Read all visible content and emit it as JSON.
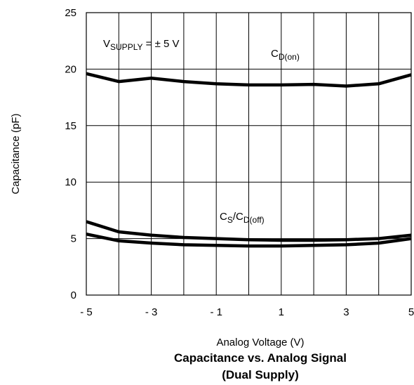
{
  "chart_data": {
    "type": "line",
    "title": "Capacitance vs. Analog Signal",
    "subtitle": "(Dual Supply)",
    "xlabel": "Analog Voltage (V)",
    "ylabel": "Capacitance (pF)",
    "xlim": [
      -5,
      5
    ],
    "ylim": [
      0,
      25
    ],
    "xticks": [
      -5,
      -4,
      -3,
      -2,
      -1,
      0,
      1,
      2,
      3,
      4,
      5
    ],
    "xtick_labels": [
      "- 5",
      "",
      "- 3",
      "",
      "- 1",
      "",
      "1",
      "",
      "3",
      "",
      "5"
    ],
    "yticks": [
      0,
      5,
      10,
      15,
      20,
      25
    ],
    "ytick_labels": [
      "0",
      "5",
      "10",
      "15",
      "20",
      "25"
    ],
    "grid": true,
    "annotations": {
      "supply": {
        "main": "V",
        "sub": "SUPPLY",
        "tail": " = ± 5 V"
      },
      "cdon": {
        "main": "C",
        "sub": "D(on)"
      },
      "cscdoff": {
        "main1": "C",
        "sub1": "S",
        "mid": "/C",
        "sub2": "D(off)"
      }
    },
    "series": [
      {
        "x": [
          -5,
          -4,
          -3,
          -2,
          -1,
          0,
          1,
          2,
          3,
          4,
          5
        ],
        "values": [
          19.6,
          18.9,
          19.2,
          18.9,
          18.7,
          18.6,
          18.6,
          18.65,
          18.5,
          18.7,
          19.5
        ]
      },
      {
        "x": [
          -5,
          -4,
          -3,
          -2,
          -1,
          0,
          1,
          2,
          3,
          4,
          5
        ],
        "values": [
          6.5,
          5.6,
          5.3,
          5.1,
          5.0,
          4.9,
          4.85,
          4.85,
          4.9,
          5.0,
          5.3
        ]
      },
      {
        "x": [
          -5,
          -4,
          -3,
          -2,
          -1,
          0,
          1,
          2,
          3,
          4,
          5
        ],
        "values": [
          5.4,
          4.8,
          4.6,
          4.45,
          4.4,
          4.35,
          4.35,
          4.4,
          4.45,
          4.6,
          5.0
        ]
      }
    ]
  }
}
